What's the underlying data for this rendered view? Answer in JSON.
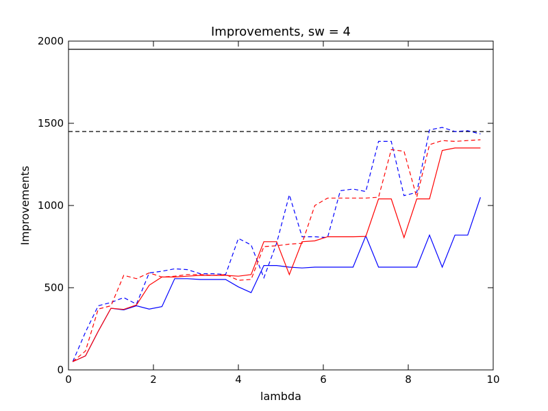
{
  "chart_data": {
    "type": "line",
    "title": "Improvements, sw = 4",
    "xlabel": "lambda",
    "ylabel": "Improvements",
    "xlim": [
      0,
      10
    ],
    "ylim": [
      0,
      2000
    ],
    "xticks": [
      0,
      2,
      4,
      6,
      8,
      10
    ],
    "yticks": [
      0,
      500,
      1000,
      1500,
      2000
    ],
    "grid": false,
    "x": [
      0.1,
      0.4,
      0.7,
      1.0,
      1.3,
      1.6,
      1.9,
      2.2,
      2.5,
      2.8,
      3.1,
      3.4,
      3.7,
      4.0,
      4.3,
      4.6,
      4.9,
      5.2,
      5.5,
      5.8,
      6.1,
      6.4,
      6.7,
      7.0,
      7.3,
      7.6,
      7.9,
      8.2,
      8.5,
      8.8,
      9.1,
      9.4,
      9.7
    ],
    "series": [
      {
        "color": "#0000ff",
        "style": "solid",
        "values": [
          50,
          85,
          235,
          375,
          365,
          390,
          370,
          385,
          555,
          555,
          550,
          550,
          550,
          505,
          470,
          635,
          635,
          625,
          620,
          625,
          625,
          625,
          625,
          815,
          625,
          625,
          625,
          625,
          820,
          625,
          820,
          820,
          1050
        ]
      },
      {
        "color": "#0000ff",
        "style": "dashed",
        "values": [
          50,
          230,
          390,
          410,
          440,
          400,
          590,
          600,
          615,
          610,
          585,
          585,
          580,
          800,
          760,
          560,
          770,
          1065,
          810,
          810,
          805,
          1090,
          1100,
          1085,
          1390,
          1390,
          1060,
          1080,
          1460,
          1475,
          1450,
          1455,
          1435
        ]
      },
      {
        "color": "#ff0000",
        "style": "solid",
        "values": [
          50,
          85,
          235,
          375,
          368,
          395,
          515,
          565,
          565,
          570,
          575,
          575,
          575,
          570,
          580,
          780,
          780,
          580,
          780,
          785,
          810,
          810,
          810,
          812,
          1040,
          1040,
          805,
          1040,
          1040,
          1335,
          1350,
          1350,
          1350
        ]
      },
      {
        "color": "#ff0000",
        "style": "dashed",
        "values": [
          50,
          115,
          370,
          390,
          575,
          555,
          590,
          565,
          570,
          580,
          580,
          575,
          580,
          545,
          550,
          750,
          755,
          765,
          770,
          1000,
          1045,
          1045,
          1045,
          1045,
          1050,
          1340,
          1330,
          1050,
          1370,
          1395,
          1390,
          1395,
          1400
        ]
      }
    ],
    "hlines": [
      {
        "y": 1950,
        "color": "#000000",
        "style": "solid"
      },
      {
        "y": 1450,
        "color": "#000000",
        "style": "dashed"
      }
    ]
  }
}
